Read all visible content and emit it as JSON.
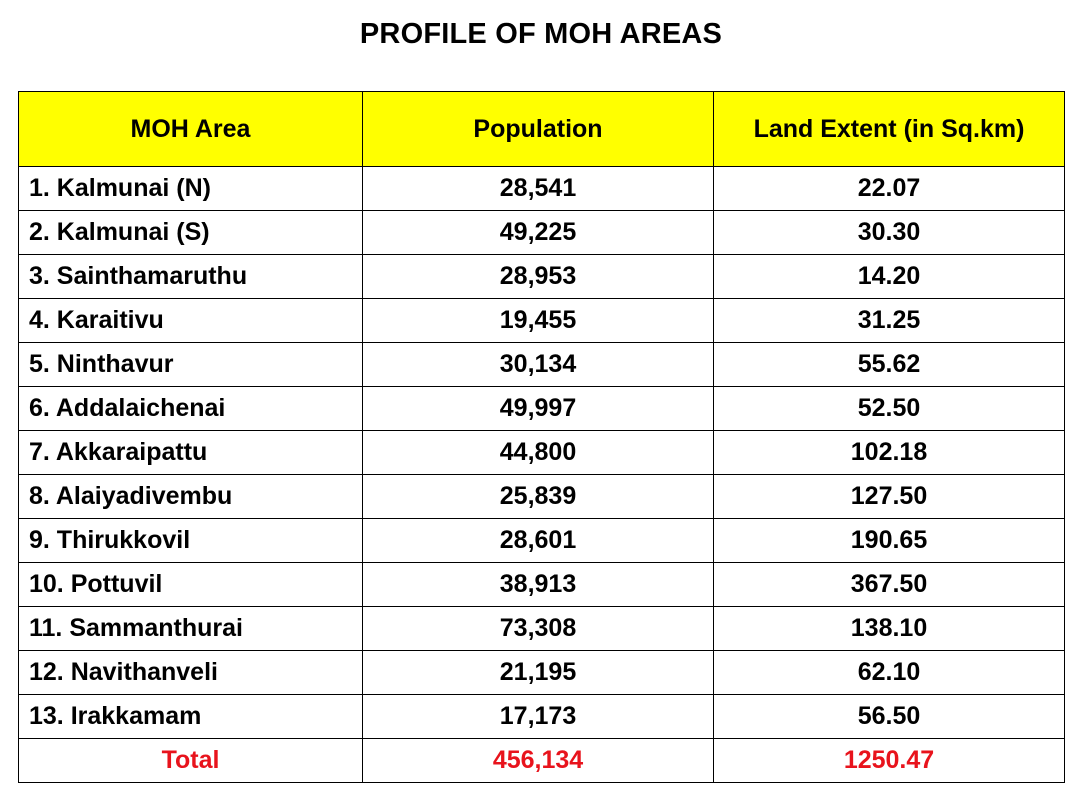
{
  "title": "PROFILE OF MOH AREAS",
  "colors": {
    "header_bg": "#ffff00",
    "total_text": "#e8131c",
    "border": "#000000"
  },
  "table": {
    "headers": [
      "MOH Area",
      "Population",
      "Land Extent (in Sq.km)"
    ],
    "rows": [
      {
        "area": "1. Kalmunai (N)",
        "population": "28,541",
        "land": "22.07"
      },
      {
        "area": "2. Kalmunai (S)",
        "population": "49,225",
        "land": "30.30"
      },
      {
        "area": "3. Sainthamaruthu",
        "population": "28,953",
        "land": "14.20"
      },
      {
        "area": "4. Karaitivu",
        "population": "19,455",
        "land": "31.25"
      },
      {
        "area": "5. Ninthavur",
        "population": "30,134",
        "land": "55.62"
      },
      {
        "area": "6. Addalaichenai",
        "population": "49,997",
        "land": "52.50"
      },
      {
        "area": "7. Akkaraipattu",
        "population": "44,800",
        "land": "102.18"
      },
      {
        "area": "8. Alaiyadivembu",
        "population": "25,839",
        "land": "127.50"
      },
      {
        "area": "9. Thirukkovil",
        "population": "28,601",
        "land": "190.65"
      },
      {
        "area": "10. Pottuvil",
        "population": "38,913",
        "land": "367.50"
      },
      {
        "area": "11. Sammanthurai",
        "population": "73,308",
        "land": "138.10"
      },
      {
        "area": "12. Navithanveli",
        "population": "21,195",
        "land": "62.10"
      },
      {
        "area": "13. Irakkamam",
        "population": "17,173",
        "land": "56.50"
      }
    ],
    "total": {
      "label": "Total",
      "population": "456,134",
      "land": "1250.47"
    }
  }
}
